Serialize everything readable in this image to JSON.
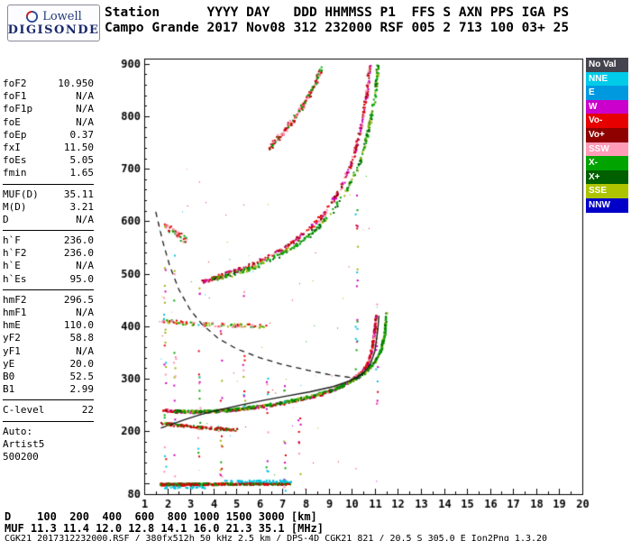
{
  "logo": {
    "brand": "Lowell",
    "product": "DIGISONDE"
  },
  "header": {
    "line1": "Station      YYYY DAY   DDD HHMMSS P1  FFS S AXN PPS IGA PS",
    "line2": "Campo Grande 2017 Nov08 312 232000 RSF 005 2 713 100 03+ 25"
  },
  "params": {
    "groups": [
      {
        "rows": [
          [
            "foF2",
            "10.950"
          ],
          [
            "foF1",
            "N/A"
          ],
          [
            "foF1p",
            "N/A"
          ],
          [
            "foE",
            "N/A"
          ],
          [
            "foEp",
            "0.37"
          ],
          [
            "fxI",
            "11.50"
          ],
          [
            "foEs",
            "5.05"
          ],
          [
            "fmin",
            "1.65"
          ]
        ]
      },
      {
        "rows": [
          [
            "MUF(D)",
            "35.11"
          ],
          [
            "M(D)",
            "3.21"
          ],
          [
            "D",
            "N/A"
          ]
        ]
      },
      {
        "rows": [
          [
            "h`F",
            "236.0"
          ],
          [
            "h`F2",
            "236.0"
          ],
          [
            "h`E",
            "N/A"
          ],
          [
            "h`Es",
            "95.0"
          ]
        ]
      },
      {
        "rows": [
          [
            "hmF2",
            "296.5"
          ],
          [
            "hmF1",
            "N/A"
          ],
          [
            "hmE",
            "110.0"
          ],
          [
            "yF2",
            "58.8"
          ],
          [
            "yF1",
            "N/A"
          ],
          [
            "yE",
            "20.0"
          ],
          [
            "B0",
            "52.5"
          ],
          [
            "B1",
            "2.99"
          ]
        ]
      },
      {
        "rows": [
          [
            "C-level",
            "22"
          ]
        ]
      },
      {
        "rows": [
          [
            "Auto:",
            ""
          ],
          [
            "Artist5",
            ""
          ],
          [
            "500200",
            ""
          ]
        ]
      }
    ]
  },
  "legend": {
    "items": [
      {
        "label": "No Val",
        "color": "#44444e"
      },
      {
        "label": "NNE",
        "color": "#00cbe8"
      },
      {
        "label": "E",
        "color": "#0099e0"
      },
      {
        "label": "W",
        "color": "#cc00cc"
      },
      {
        "label": "Vo-",
        "color": "#e60000"
      },
      {
        "label": "Vo+",
        "color": "#8f0000"
      },
      {
        "label": "SSW",
        "color": "#ff9cb8"
      },
      {
        "label": "X-",
        "color": "#00a300"
      },
      {
        "label": "X+",
        "color": "#005f00"
      },
      {
        "label": "SSE",
        "color": "#aec400"
      },
      {
        "label": "NNW",
        "color": "#0000c8"
      }
    ]
  },
  "footer": {
    "d_line": "D    100  200  400  600  800 1000 1500 3000 [km]",
    "muf_line": "MUF 11.3 11.4 12.0 12.8 14.1 16.0 21.3 35.1 [MHz]",
    "caption": "CGK21_2017312232000.RSF / 380fx512h 50 kHz 2.5 km / DPS-4D CGK21 821 / 20.5 S 305.0 E Ion2Png 1.3.20"
  },
  "chart_data": {
    "type": "scatter",
    "title": "Digisonde ionogram, Campo Grande, 2017 Nov08 day 312 23:20:00",
    "xlabel_unit": "MHz",
    "ylabel_unit": "km",
    "xlim": [
      1,
      20
    ],
    "ylim": [
      80,
      910
    ],
    "x_tick_labels": [
      "1",
      "2",
      "3",
      "4",
      "5",
      "6",
      "7",
      "8",
      "9",
      "10",
      "11",
      "12",
      "13",
      "14",
      "15",
      "16",
      "17",
      "18",
      "19",
      "20"
    ],
    "y_tick_values": [
      900,
      800,
      700,
      600,
      500,
      400,
      300,
      200,
      80
    ],
    "y_tick_labels": [
      "900",
      "800",
      "700",
      "600",
      "500",
      "400",
      "300",
      "200",
      "80"
    ],
    "grid": false,
    "legend_position": "right",
    "traces": [
      {
        "name": "es-layer-1hop",
        "colors": [
          "#e00000",
          "#00a300",
          "#b80010",
          "#008000",
          "#e00000"
        ],
        "points": [
          [
            1.68,
            100
          ],
          [
            3.0,
            100
          ],
          [
            5.0,
            101
          ],
          [
            7.3,
            101
          ]
        ],
        "n": 430,
        "jx": 0.05,
        "jy": 2.2,
        "size": 2
      },
      {
        "name": "es-fringe-cyan-upper",
        "colors": [
          "#00c4e4"
        ],
        "points": [
          [
            4.4,
            106
          ],
          [
            7.35,
            106
          ]
        ],
        "n": 60,
        "jx": 0.06,
        "jy": 2,
        "size": 2
      },
      {
        "name": "es-fringe-cyan-lower",
        "colors": [
          "#00c4e4"
        ],
        "points": [
          [
            1.9,
            94
          ],
          [
            3.6,
            94
          ]
        ],
        "n": 30,
        "jx": 0.06,
        "jy": 2,
        "size": 2
      },
      {
        "name": "es-2hop",
        "colors": [
          "#e00000",
          "#00a300",
          "#b80010"
        ],
        "points": [
          [
            1.7,
            216
          ],
          [
            2.6,
            212
          ],
          [
            3.5,
            208
          ],
          [
            5.0,
            204
          ]
        ],
        "n": 150,
        "jx": 0.05,
        "jy": 2.4,
        "size": 2
      },
      {
        "name": "multiple-400km",
        "colors": [
          "#00a300",
          "#e00000",
          "#ff8fae",
          "#9db300"
        ],
        "points": [
          [
            1.8,
            411
          ],
          [
            3.2,
            406
          ],
          [
            4.8,
            403
          ],
          [
            6.3,
            401
          ]
        ],
        "n": 110,
        "jx": 0.07,
        "jy": 3.5,
        "size": 2
      },
      {
        "name": "f-trace-o-1hop",
        "colors": [
          "#e00000",
          "#e00000",
          "#c40010",
          "#8b0000",
          "#ff8fae",
          "#cc00bb"
        ],
        "points": [
          [
            1.78,
            241
          ],
          [
            2.6,
            238
          ],
          [
            3.6,
            238
          ],
          [
            4.6,
            241
          ],
          [
            5.6,
            246
          ],
          [
            6.6,
            252
          ],
          [
            7.6,
            260
          ],
          [
            8.6,
            271
          ],
          [
            9.4,
            284
          ],
          [
            10.0,
            299
          ],
          [
            10.45,
            315
          ],
          [
            10.7,
            334
          ],
          [
            10.85,
            358
          ],
          [
            10.95,
            390
          ],
          [
            11.02,
            422
          ]
        ],
        "n": 520,
        "jx": 0.035,
        "jy": 2.4,
        "size": 2
      },
      {
        "name": "f-trace-x-1hop",
        "colors": [
          "#00a300",
          "#00a300",
          "#008300",
          "#005f00",
          "#9db300"
        ],
        "points": [
          [
            2.35,
            240
          ],
          [
            3.2,
            238
          ],
          [
            4.2,
            240
          ],
          [
            5.2,
            244
          ],
          [
            6.2,
            250
          ],
          [
            7.2,
            258
          ],
          [
            8.2,
            268
          ],
          [
            9.2,
            281
          ],
          [
            9.9,
            295
          ],
          [
            10.5,
            312
          ],
          [
            10.95,
            332
          ],
          [
            11.25,
            356
          ],
          [
            11.4,
            388
          ],
          [
            11.48,
            428
          ]
        ],
        "n": 430,
        "jx": 0.035,
        "jy": 2.4,
        "size": 2
      },
      {
        "name": "f-trace-o-2hop",
        "colors": [
          "#e00000",
          "#c40010",
          "#8b0000",
          "#ff8fae",
          "#cc00bb"
        ],
        "points": [
          [
            3.45,
            486
          ],
          [
            4.2,
            496
          ],
          [
            5.0,
            508
          ],
          [
            6.0,
            526
          ],
          [
            7.0,
            549
          ],
          [
            8.0,
            580
          ],
          [
            8.8,
            618
          ],
          [
            9.5,
            665
          ],
          [
            10.0,
            718
          ],
          [
            10.35,
            775
          ],
          [
            10.6,
            838
          ],
          [
            10.75,
            898
          ]
        ],
        "n": 360,
        "jx": 0.05,
        "jy": 4,
        "size": 2
      },
      {
        "name": "f-trace-x-2hop",
        "colors": [
          "#00a300",
          "#00a300",
          "#005f00",
          "#9db300"
        ],
        "points": [
          [
            3.9,
            490
          ],
          [
            5.0,
            503
          ],
          [
            6.0,
            519
          ],
          [
            7.0,
            541
          ],
          [
            8.0,
            570
          ],
          [
            8.9,
            607
          ],
          [
            9.7,
            655
          ],
          [
            10.3,
            712
          ],
          [
            10.7,
            775
          ],
          [
            11.0,
            845
          ],
          [
            11.1,
            898
          ]
        ],
        "n": 300,
        "jx": 0.05,
        "jy": 4,
        "size": 2
      },
      {
        "name": "f-trace-3hop",
        "colors": [
          "#e00000",
          "#00a300",
          "#b80010",
          "#ff8fae"
        ],
        "points": [
          [
            6.35,
            740
          ],
          [
            6.9,
            765
          ],
          [
            7.4,
            792
          ],
          [
            7.9,
            824
          ],
          [
            8.35,
            860
          ],
          [
            8.7,
            896
          ]
        ],
        "n": 150,
        "jx": 0.07,
        "jy": 5,
        "size": 2
      },
      {
        "name": "spread-cluster-560",
        "colors": [
          "#e00000",
          "#00a300",
          "#ff8fae"
        ],
        "points": [
          [
            1.85,
            592
          ],
          [
            2.3,
            578
          ],
          [
            2.75,
            566
          ]
        ],
        "n": 45,
        "jx": 0.09,
        "jy": 7,
        "size": 2
      }
    ],
    "noise_columns": [
      {
        "f": 1.87,
        "h": [
          115,
          640
        ],
        "n": 26
      },
      {
        "f": 2.3,
        "h": [
          115,
          560
        ],
        "n": 20
      },
      {
        "f": 3.35,
        "h": [
          110,
          500
        ],
        "n": 22
      },
      {
        "f": 4.3,
        "h": [
          115,
          470
        ],
        "n": 18
      },
      {
        "f": 5.3,
        "h": [
          240,
          470
        ],
        "n": 14
      },
      {
        "f": 6.3,
        "h": [
          105,
          310
        ],
        "n": 12
      },
      {
        "f": 7.05,
        "h": [
          85,
          305
        ],
        "n": 14
      },
      {
        "f": 7.7,
        "h": [
          95,
          230
        ],
        "n": 8
      },
      {
        "f": 10.18,
        "h": [
          300,
          670
        ],
        "n": 20
      },
      {
        "f": 11.05,
        "h": [
          250,
          445
        ],
        "n": 14
      }
    ],
    "noise_colors": [
      "#ff8fae",
      "#00c4e4",
      "#00a300",
      "#e00000",
      "#cc00bb",
      "#9db300"
    ],
    "scatter_field": {
      "n": 70,
      "f": [
        1.5,
        11.5
      ],
      "h": [
        90,
        700
      ]
    },
    "curves": [
      {
        "name": "profile",
        "style": "solid",
        "color": "#1a1a1a",
        "width": 1.4,
        "points": [
          [
            2.15,
            212
          ],
          [
            2.7,
            221
          ],
          [
            3.4,
            231
          ],
          [
            4.2,
            240
          ],
          [
            5.2,
            250
          ],
          [
            6.2,
            259
          ],
          [
            7.2,
            267
          ],
          [
            8.2,
            275
          ],
          [
            9.2,
            285
          ],
          [
            10.0,
            297
          ],
          [
            10.5,
            310
          ],
          [
            10.8,
            327
          ],
          [
            11.0,
            352
          ],
          [
            11.12,
            390
          ],
          [
            11.18,
            420
          ]
        ]
      },
      {
        "name": "profile-extrapolated",
        "style": "dashed",
        "color": "#1a1a1a",
        "width": 1.3,
        "points": [
          [
            1.72,
            206
          ],
          [
            2.15,
            212
          ]
        ]
      },
      {
        "name": "muf-transmission-curve",
        "style": "dashed",
        "color": "#1a1a1a",
        "width": 1.3,
        "points": [
          [
            1.5,
            618
          ],
          [
            1.8,
            562
          ],
          [
            2.1,
            516
          ],
          [
            2.5,
            470
          ],
          [
            3.0,
            431
          ],
          [
            3.5,
            404
          ],
          [
            4.2,
            377
          ],
          [
            5.0,
            357
          ],
          [
            6.0,
            340
          ],
          [
            7.0,
            327
          ],
          [
            8.0,
            317
          ],
          [
            9.0,
            308
          ],
          [
            10.0,
            302
          ],
          [
            10.55,
            299
          ]
        ]
      }
    ]
  }
}
